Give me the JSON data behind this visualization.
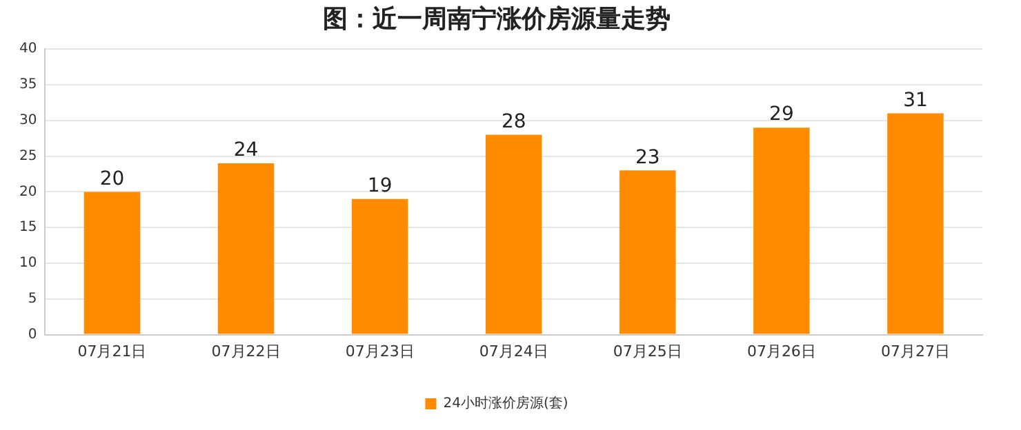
{
  "chart_data": {
    "type": "bar",
    "title": "图：近一周南宁涨价房源量走势",
    "categories": [
      "07月21日",
      "07月22日",
      "07月23日",
      "07月24日",
      "07月25日",
      "07月26日",
      "07月27日"
    ],
    "series": [
      {
        "name": "24小时涨价房源(套)",
        "color": "#ff8c00",
        "values": [
          20,
          24,
          19,
          28,
          23,
          29,
          31
        ]
      }
    ],
    "ylim": [
      0,
      40
    ],
    "yticks": [
      0,
      5,
      10,
      15,
      20,
      25,
      30,
      35,
      40
    ],
    "grid": "y",
    "legend": "bottom",
    "data_labels": true
  }
}
